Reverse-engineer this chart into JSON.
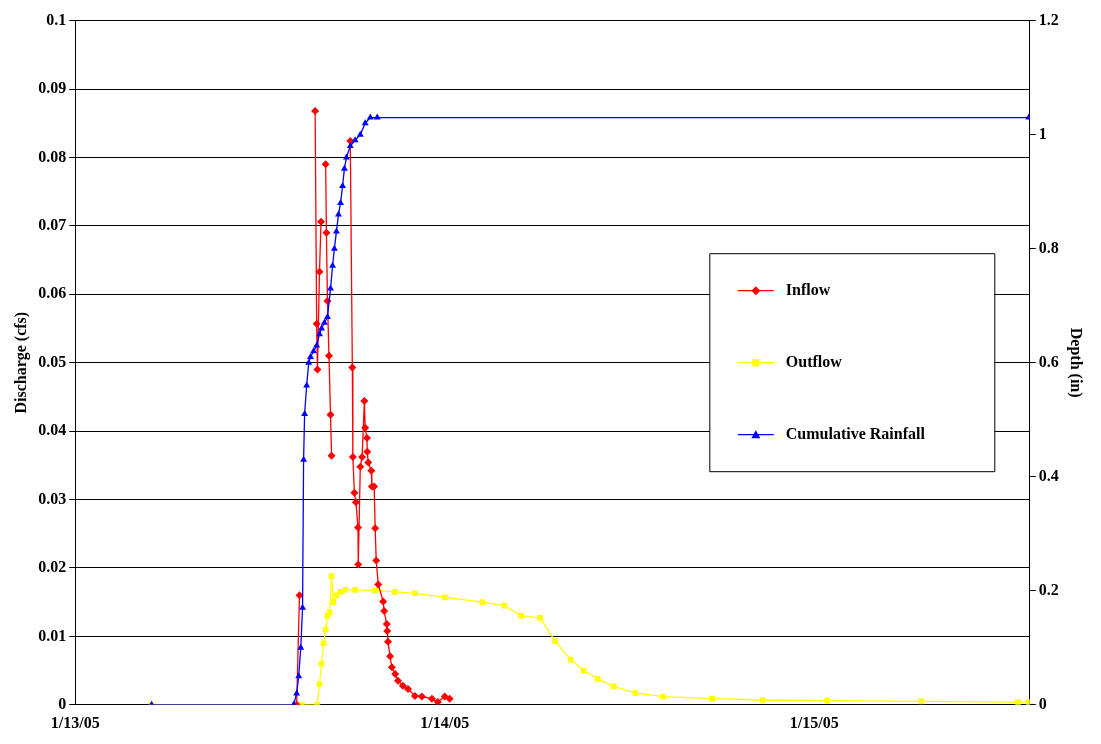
{
  "chart_data": {
    "type": "line",
    "ylabel": "Discharge (cfs)",
    "y2label": "Depth (in)",
    "xlim": [
      "--01-13T00:00",
      "--01-15T14:00"
    ],
    "xticks": [
      {
        "value": "--01-13",
        "label": "1/13/05"
      },
      {
        "value": "--01-14",
        "label": "1/14/05"
      },
      {
        "value": "--01-15",
        "label": "1/15/05"
      }
    ],
    "ylim": [
      0,
      0.1
    ],
    "yticks": [
      0,
      0.01,
      0.02,
      0.03,
      0.04,
      0.05,
      0.06,
      0.07,
      0.08,
      0.09,
      0.1
    ],
    "y2lim": [
      0,
      1.2
    ],
    "y2ticks": [
      0,
      0.2,
      0.4,
      0.6,
      0.8,
      1,
      1.2
    ],
    "grid": "y",
    "legend": "right",
    "line_style": "solid",
    "series": [
      {
        "name": "Inflow",
        "color": "#ff0000",
        "marker": "diamond",
        "x": [
          "--01-13T14:23",
          "--01-13T14:34",
          "--01-13T14:39",
          "--01-13T15:35",
          "--01-13T15:41",
          "--01-13T15:44",
          "--01-13T15:52",
          "--01-13T15:58",
          "--01-13T16:04",
          "--01-13T16:16",
          "--01-13T16:19",
          "--01-13T16:23",
          "--01-13T16:29",
          "--01-13T16:35",
          "--01-13T16:39",
          "--01-13T17:14",
          "--01-13T17:52",
          "--01-13T18:00",
          "--01-13T18:02",
          "--01-13T18:08",
          "--01-13T18:14",
          "--01-13T18:22",
          "--01-13T18:23",
          "--01-13T18:31",
          "--01-13T18:38",
          "--01-13T18:47",
          "--01-13T18:50",
          "--01-13T18:57",
          "--01-13T18:58",
          "--01-13T19:02",
          "--01-13T19:14",
          "--01-13T19:16",
          "--01-13T19:25",
          "--01-13T19:29",
          "--01-13T19:33",
          "--01-13T19:41",
          "--01-13T20:00",
          "--01-13T20:04",
          "--01-13T20:14",
          "--01-13T20:16",
          "--01-13T20:19",
          "--01-13T20:27",
          "--01-13T20:34",
          "--01-13T20:47",
          "--01-13T20:58",
          "--01-13T21:17",
          "--01-13T21:37",
          "--01-13T22:04",
          "--01-13T22:31",
          "--01-13T23:10",
          "--01-13T23:33",
          "--01-14T00:00",
          "--01-14T00:19"
        ],
        "values": [
          0,
          0.016,
          null,
          0.0868,
          0.0557,
          0.049,
          0.0633,
          0.0706,
          null,
          0.079,
          0.069,
          0.059,
          0.051,
          0.0424,
          0.0364,
          null,
          0.0824,
          0.0493,
          0.0362,
          0.031,
          0.0296,
          0.0259,
          0.0205,
          0.0348,
          0.0362,
          0.0444,
          0.0405,
          0.039,
          0.037,
          0.0354,
          0.0342,
          0.0319,
          0.0319,
          0.0258,
          0.0211,
          0.0176,
          0.0151,
          0.0137,
          0.0118,
          0.0108,
          0.0092,
          0.0071,
          0.0055,
          0.0045,
          0.0035,
          0.0028,
          0.0023,
          0.0013,
          0.0012,
          0.0009,
          0.0004,
          0.0012,
          0.0009
        ]
      },
      {
        "name": "Outflow",
        "color": "#ffff00",
        "marker": "square",
        "x": [
          "--01-13T04:58",
          "--01-13T14:43",
          "--01-13T15:44",
          "--01-13T15:52",
          "--01-13T16:00",
          "--01-13T16:08",
          "--01-13T16:16",
          "--01-13T16:23",
          "--01-13T16:31",
          "--01-13T16:39",
          "--01-13T16:46",
          "--01-13T16:58",
          "--01-13T17:14",
          "--01-13T17:33",
          "--01-13T18:11",
          "--01-13T19:29",
          "--01-13T20:46",
          "--01-13T22:04",
          "--01-14T00:00",
          "--01-14T02:27",
          "--01-14T03:52",
          "--01-14T04:58",
          "--01-14T06:12",
          "--01-14T07:10",
          "--01-14T08:11",
          "--01-14T09:02",
          "--01-14T09:56",
          "--01-14T10:58",
          "--01-14T12:23",
          "--01-14T14:11",
          "--01-14T17:22",
          "--01-14T20:39",
          "--01-15T00:50",
          "--01-15T06:58",
          "--01-15T13:14",
          "--01-15T13:56"
        ],
        "values": [
          0,
          0,
          0,
          0.003,
          0.006,
          0.009,
          0.011,
          0.013,
          0.0135,
          0.0188,
          0.015,
          0.016,
          0.0165,
          0.0168,
          0.0168,
          0.0167,
          0.0165,
          0.0163,
          0.0157,
          0.015,
          0.0145,
          0.013,
          0.0127,
          0.0093,
          0.0066,
          0.005,
          0.0038,
          0.0027,
          0.0017,
          0.0012,
          0.0009,
          0.0007,
          0.0006,
          0.0005,
          0.0004,
          0.0004
        ]
      },
      {
        "name": "Cumulative Rainfall",
        "color": "#0000ff",
        "marker": "triangle",
        "axis": "y2",
        "x": [
          "--01-13T04:58",
          "--01-13T14:11",
          "--01-13T14:23",
          "--01-13T14:31",
          "--01-13T14:39",
          "--01-13T14:46",
          "--01-13T14:50",
          "--01-13T14:54",
          "--01-13T15:02",
          "--01-13T15:10",
          "--01-13T15:17",
          "--01-13T15:29",
          "--01-13T15:41",
          "--01-13T15:52",
          "--01-13T16:00",
          "--01-13T16:11",
          "--01-13T16:23",
          "--01-13T16:35",
          "--01-13T16:43",
          "--01-13T16:50",
          "--01-13T16:58",
          "--01-13T17:06",
          "--01-13T17:14",
          "--01-13T17:22",
          "--01-13T17:29",
          "--01-13T17:37",
          "--01-13T17:52",
          "--01-13T18:11",
          "--01-13T18:31",
          "--01-13T18:50",
          "--01-13T19:10",
          "--01-13T19:37",
          "--01-15T13:56"
        ],
        "values": [
          0,
          0,
          0.02,
          0.05,
          0.1,
          0.17,
          0.43,
          0.51,
          0.56,
          0.6,
          0.61,
          0.62,
          0.63,
          0.65,
          0.66,
          0.67,
          0.68,
          0.73,
          0.77,
          0.8,
          0.83,
          0.86,
          0.88,
          0.91,
          0.94,
          0.96,
          0.98,
          0.99,
          1.0,
          1.02,
          1.03,
          1.03,
          1.03
        ]
      }
    ]
  }
}
